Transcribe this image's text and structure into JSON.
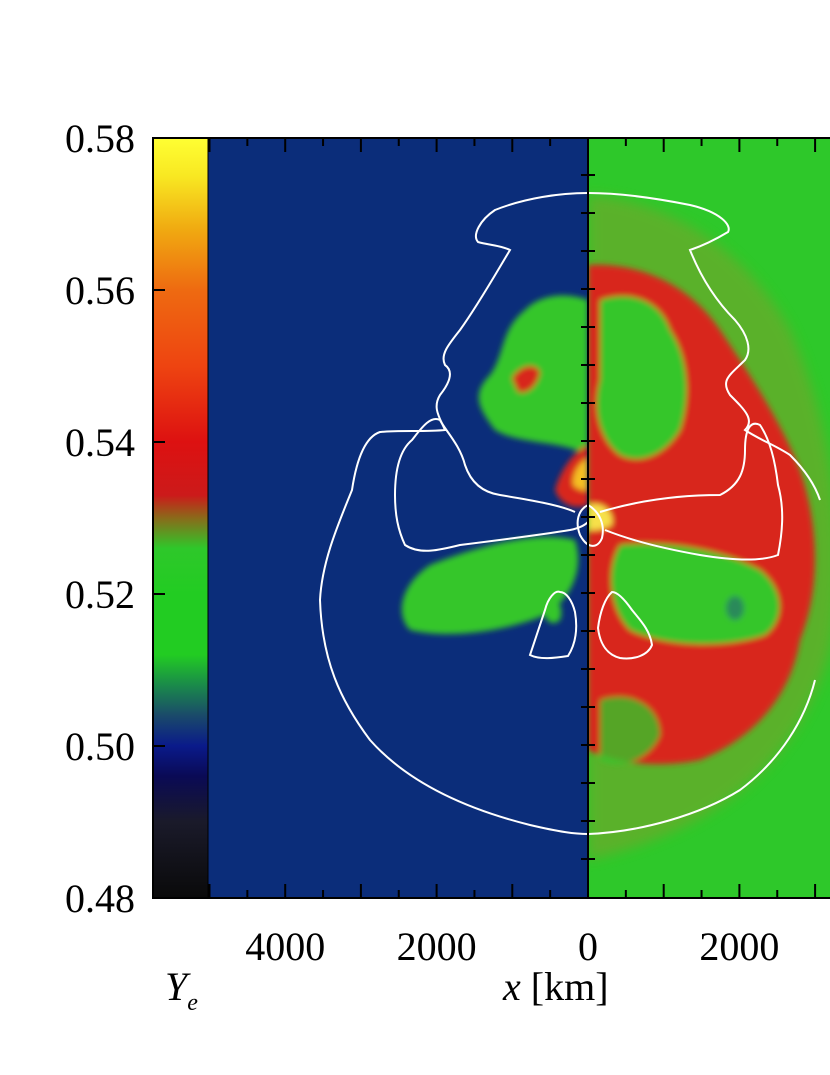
{
  "colorbar": {
    "label_main": "Y",
    "label_sub": "e",
    "ticks": [
      "0.58",
      "0.56",
      "0.54",
      "0.52",
      "0.50",
      "0.48"
    ],
    "range": [
      0.48,
      0.58
    ],
    "stops": [
      {
        "value": 0.48,
        "color": "#0a0a0a"
      },
      {
        "value": 0.49,
        "color": "#1a1a2a"
      },
      {
        "value": 0.496,
        "color": "#0a0a55"
      },
      {
        "value": 0.5,
        "color": "#0a1a8a"
      },
      {
        "value": 0.504,
        "color": "#1a4a6a"
      },
      {
        "value": 0.508,
        "color": "#1a8a4a"
      },
      {
        "value": 0.512,
        "color": "#22cc22"
      },
      {
        "value": 0.52,
        "color": "#22cc22"
      },
      {
        "value": 0.526,
        "color": "#2ec82a"
      },
      {
        "value": 0.53,
        "color": "#8a6a1a"
      },
      {
        "value": 0.533,
        "color": "#cc1a1a"
      },
      {
        "value": 0.54,
        "color": "#dd1111"
      },
      {
        "value": 0.55,
        "color": "#ee4411"
      },
      {
        "value": 0.56,
        "color": "#ee6a11"
      },
      {
        "value": 0.568,
        "color": "#f0aa11"
      },
      {
        "value": 0.575,
        "color": "#f8e822"
      },
      {
        "value": 0.58,
        "color": "#ffff33"
      }
    ]
  },
  "x_axis": {
    "label_var": "x",
    "label_unit": "[km]",
    "ticks": [
      "4000",
      "2000",
      "0",
      "2000"
    ]
  },
  "colors": {
    "left_background": "#0b2d7a",
    "right_background": "#2ec82a",
    "red_region": "#d8261a",
    "green_region": "#34c62c",
    "contour": "#ffffff"
  }
}
